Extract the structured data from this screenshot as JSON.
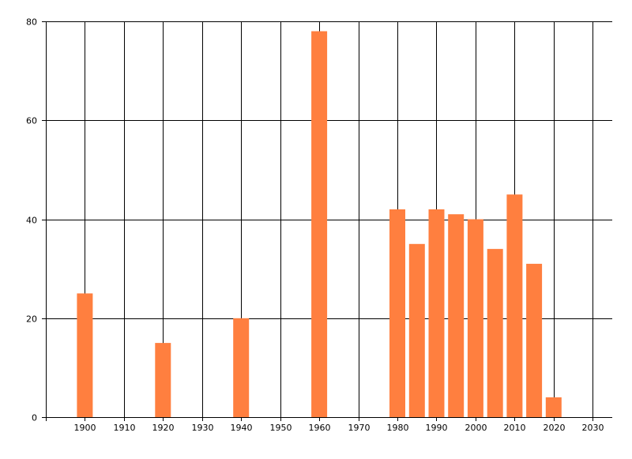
{
  "chart_data": {
    "type": "bar",
    "title": "",
    "xlabel": "",
    "ylabel": "",
    "xlim": [
      1890,
      2035
    ],
    "ylim": [
      0,
      80
    ],
    "x_ticks": [
      1900,
      1910,
      1920,
      1930,
      1940,
      1950,
      1960,
      1970,
      1980,
      1990,
      2000,
      2010,
      2020,
      2030
    ],
    "x_tick_labels": [
      "1900",
      "1910",
      "1920",
      "1930",
      "1940",
      "1950",
      "1960",
      "1970",
      "1980",
      "1990",
      "2000",
      "2010",
      "2020",
      "2030"
    ],
    "y_ticks": [
      0,
      20,
      40,
      60,
      80
    ],
    "y_tick_labels": [
      "0",
      "20",
      "40",
      "60",
      "80"
    ],
    "grid": true,
    "legend": "none",
    "bar_color": "#ff7f3f",
    "x": [
      1900,
      1920,
      1940,
      1960,
      1980,
      1985,
      1990,
      1995,
      2000,
      2005,
      2010,
      2015,
      2020
    ],
    "values": [
      25,
      15,
      20,
      78,
      42,
      35,
      42,
      41,
      40,
      34,
      45,
      31,
      4
    ]
  }
}
